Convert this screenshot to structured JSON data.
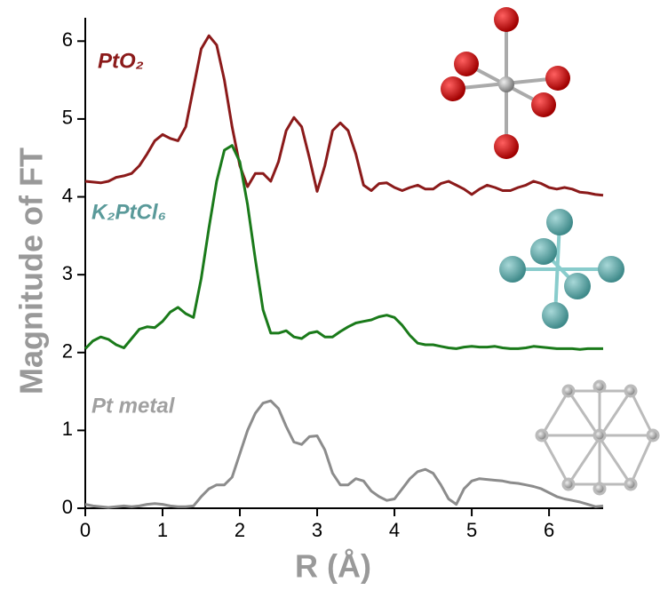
{
  "chart_data": {
    "type": "line",
    "x_label": "R (Å)",
    "y_label": "Magnitude of FT",
    "xlim": [
      0,
      6.7
    ],
    "ylim": [
      0,
      6.3
    ],
    "xticks": [
      0,
      1,
      2,
      3,
      4,
      5,
      6
    ],
    "yticks": [
      0,
      1,
      2,
      3,
      4,
      5,
      6
    ],
    "x": [
      0,
      0.1,
      0.2,
      0.3,
      0.4,
      0.5,
      0.6,
      0.7,
      0.8,
      0.9,
      1.0,
      1.1,
      1.2,
      1.3,
      1.4,
      1.5,
      1.6,
      1.7,
      1.8,
      1.9,
      2.0,
      2.1,
      2.2,
      2.3,
      2.4,
      2.5,
      2.6,
      2.7,
      2.8,
      2.9,
      3.0,
      3.1,
      3.2,
      3.3,
      3.4,
      3.5,
      3.6,
      3.7,
      3.8,
      3.9,
      4.0,
      4.1,
      4.2,
      4.3,
      4.4,
      4.5,
      4.6,
      4.7,
      4.8,
      4.9,
      5.0,
      5.1,
      5.2,
      5.3,
      5.4,
      5.5,
      5.6,
      5.7,
      5.8,
      5.9,
      6.0,
      6.1,
      6.2,
      6.3,
      6.4,
      6.5,
      6.6,
      6.7
    ],
    "series": [
      {
        "name": "PtO₂",
        "color": "#8b1a1a",
        "label_color": "#8b1a1a",
        "values": [
          4.2,
          4.19,
          4.18,
          4.2,
          4.25,
          4.27,
          4.3,
          4.4,
          4.55,
          4.72,
          4.8,
          4.75,
          4.72,
          4.9,
          5.4,
          5.9,
          6.07,
          5.95,
          5.5,
          4.9,
          4.4,
          4.13,
          4.3,
          4.3,
          4.2,
          4.45,
          4.85,
          5.02,
          4.9,
          4.5,
          4.07,
          4.4,
          4.85,
          4.95,
          4.85,
          4.55,
          4.15,
          4.08,
          4.17,
          4.18,
          4.12,
          4.08,
          4.12,
          4.15,
          4.1,
          4.1,
          4.17,
          4.2,
          4.15,
          4.1,
          4.03,
          4.1,
          4.15,
          4.12,
          4.08,
          4.08,
          4.12,
          4.15,
          4.2,
          4.17,
          4.12,
          4.1,
          4.12,
          4.1,
          4.06,
          4.05,
          4.03,
          4.02
        ]
      },
      {
        "name": "K₂PtCl₆",
        "color": "#1a7a1a",
        "label_color": "#5a9a9a",
        "values": [
          2.05,
          2.15,
          2.2,
          2.17,
          2.1,
          2.06,
          2.18,
          2.3,
          2.33,
          2.32,
          2.4,
          2.52,
          2.58,
          2.5,
          2.45,
          2.95,
          3.6,
          4.2,
          4.6,
          4.66,
          4.45,
          3.9,
          3.2,
          2.55,
          2.25,
          2.25,
          2.28,
          2.2,
          2.18,
          2.25,
          2.27,
          2.2,
          2.2,
          2.27,
          2.33,
          2.38,
          2.4,
          2.42,
          2.46,
          2.48,
          2.45,
          2.35,
          2.22,
          2.12,
          2.1,
          2.1,
          2.08,
          2.06,
          2.05,
          2.07,
          2.08,
          2.07,
          2.07,
          2.08,
          2.06,
          2.05,
          2.05,
          2.06,
          2.08,
          2.07,
          2.06,
          2.05,
          2.05,
          2.05,
          2.04,
          2.05,
          2.05,
          2.05
        ]
      },
      {
        "name": "Pt metal",
        "color": "#8c8c8c",
        "label_color": "#a0a0a0",
        "values": [
          0.05,
          0.03,
          0.02,
          0.01,
          0.02,
          0.03,
          0.02,
          0.03,
          0.05,
          0.06,
          0.05,
          0.03,
          0.02,
          0.02,
          0.03,
          0.15,
          0.25,
          0.3,
          0.3,
          0.4,
          0.7,
          1.0,
          1.22,
          1.35,
          1.38,
          1.28,
          1.05,
          0.85,
          0.82,
          0.92,
          0.93,
          0.75,
          0.45,
          0.3,
          0.3,
          0.38,
          0.35,
          0.22,
          0.15,
          0.1,
          0.12,
          0.25,
          0.38,
          0.47,
          0.5,
          0.45,
          0.3,
          0.12,
          0.05,
          0.25,
          0.35,
          0.38,
          0.37,
          0.36,
          0.35,
          0.33,
          0.32,
          0.3,
          0.28,
          0.25,
          0.2,
          0.15,
          0.12,
          0.1,
          0.08,
          0.05,
          0.02,
          0.03
        ]
      }
    ]
  }
}
